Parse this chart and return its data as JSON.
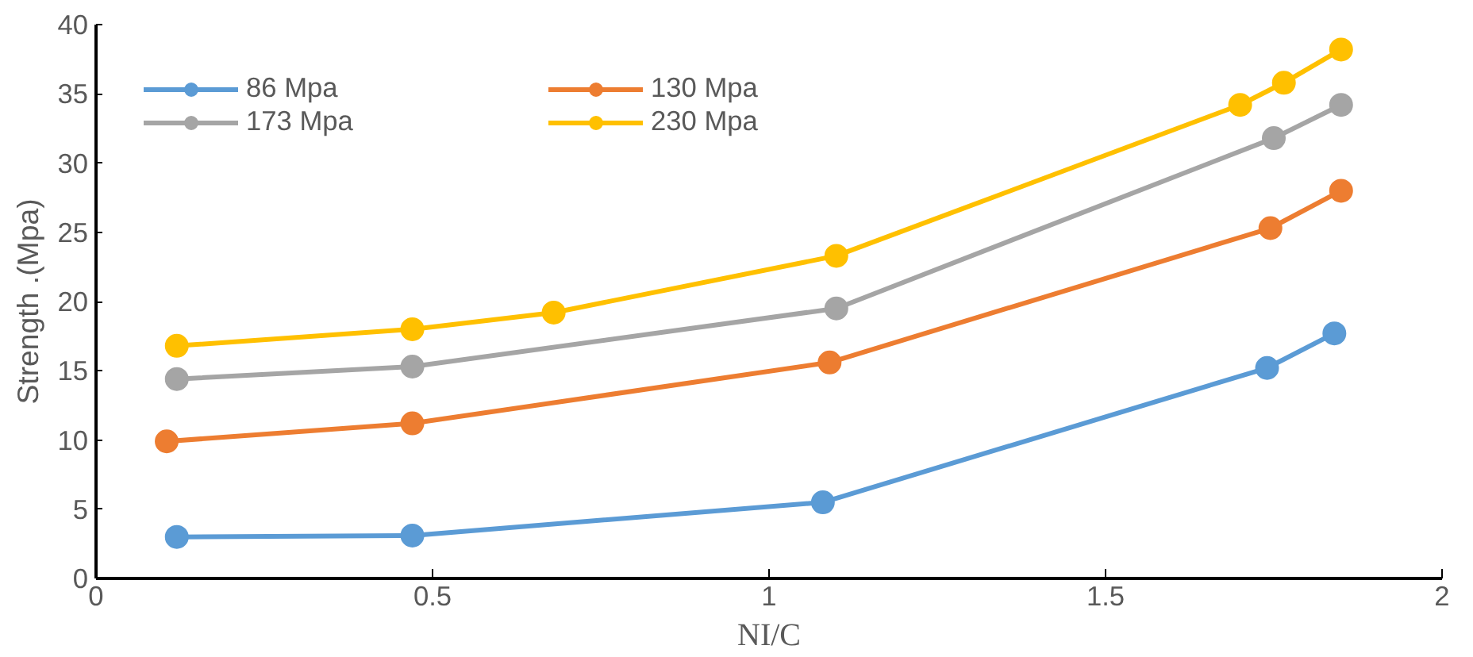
{
  "chart_data": {
    "type": "line",
    "xlabel": "NI/C",
    "ylabel": "Strength .(Mpa)",
    "xlim": [
      0,
      2
    ],
    "ylim": [
      0,
      40
    ],
    "xticks": [
      0,
      0.5,
      1,
      1.5,
      2
    ],
    "yticks": [
      0,
      5,
      10,
      15,
      20,
      25,
      30,
      35,
      40
    ],
    "grid": false,
    "legend": "top left",
    "marker": "circle",
    "line_style": "solid",
    "series": [
      {
        "name": "86 Mpa",
        "color": "#5b9bd5",
        "x": [
          0.12,
          0.47,
          1.08,
          1.74,
          1.84
        ],
        "values": [
          3.0,
          3.1,
          5.5,
          15.2,
          17.7
        ]
      },
      {
        "name": "130 Mpa",
        "color": "#ed7d31",
        "x": [
          0.105,
          0.47,
          1.09,
          1.745,
          1.85
        ],
        "values": [
          9.9,
          11.2,
          15.6,
          25.3,
          28.0
        ]
      },
      {
        "name": "173 Mpa",
        "color": "#a5a5a5",
        "x": [
          0.12,
          0.47,
          1.1,
          1.75,
          1.85
        ],
        "values": [
          14.4,
          15.3,
          19.5,
          31.8,
          34.2
        ]
      },
      {
        "name": "230 Mpa",
        "color": "#ffc000",
        "x": [
          0.12,
          0.47,
          0.68,
          1.1,
          1.7,
          1.765,
          1.85
        ],
        "values": [
          16.8,
          18.0,
          19.2,
          23.3,
          34.2,
          35.8,
          38.2
        ]
      }
    ]
  }
}
